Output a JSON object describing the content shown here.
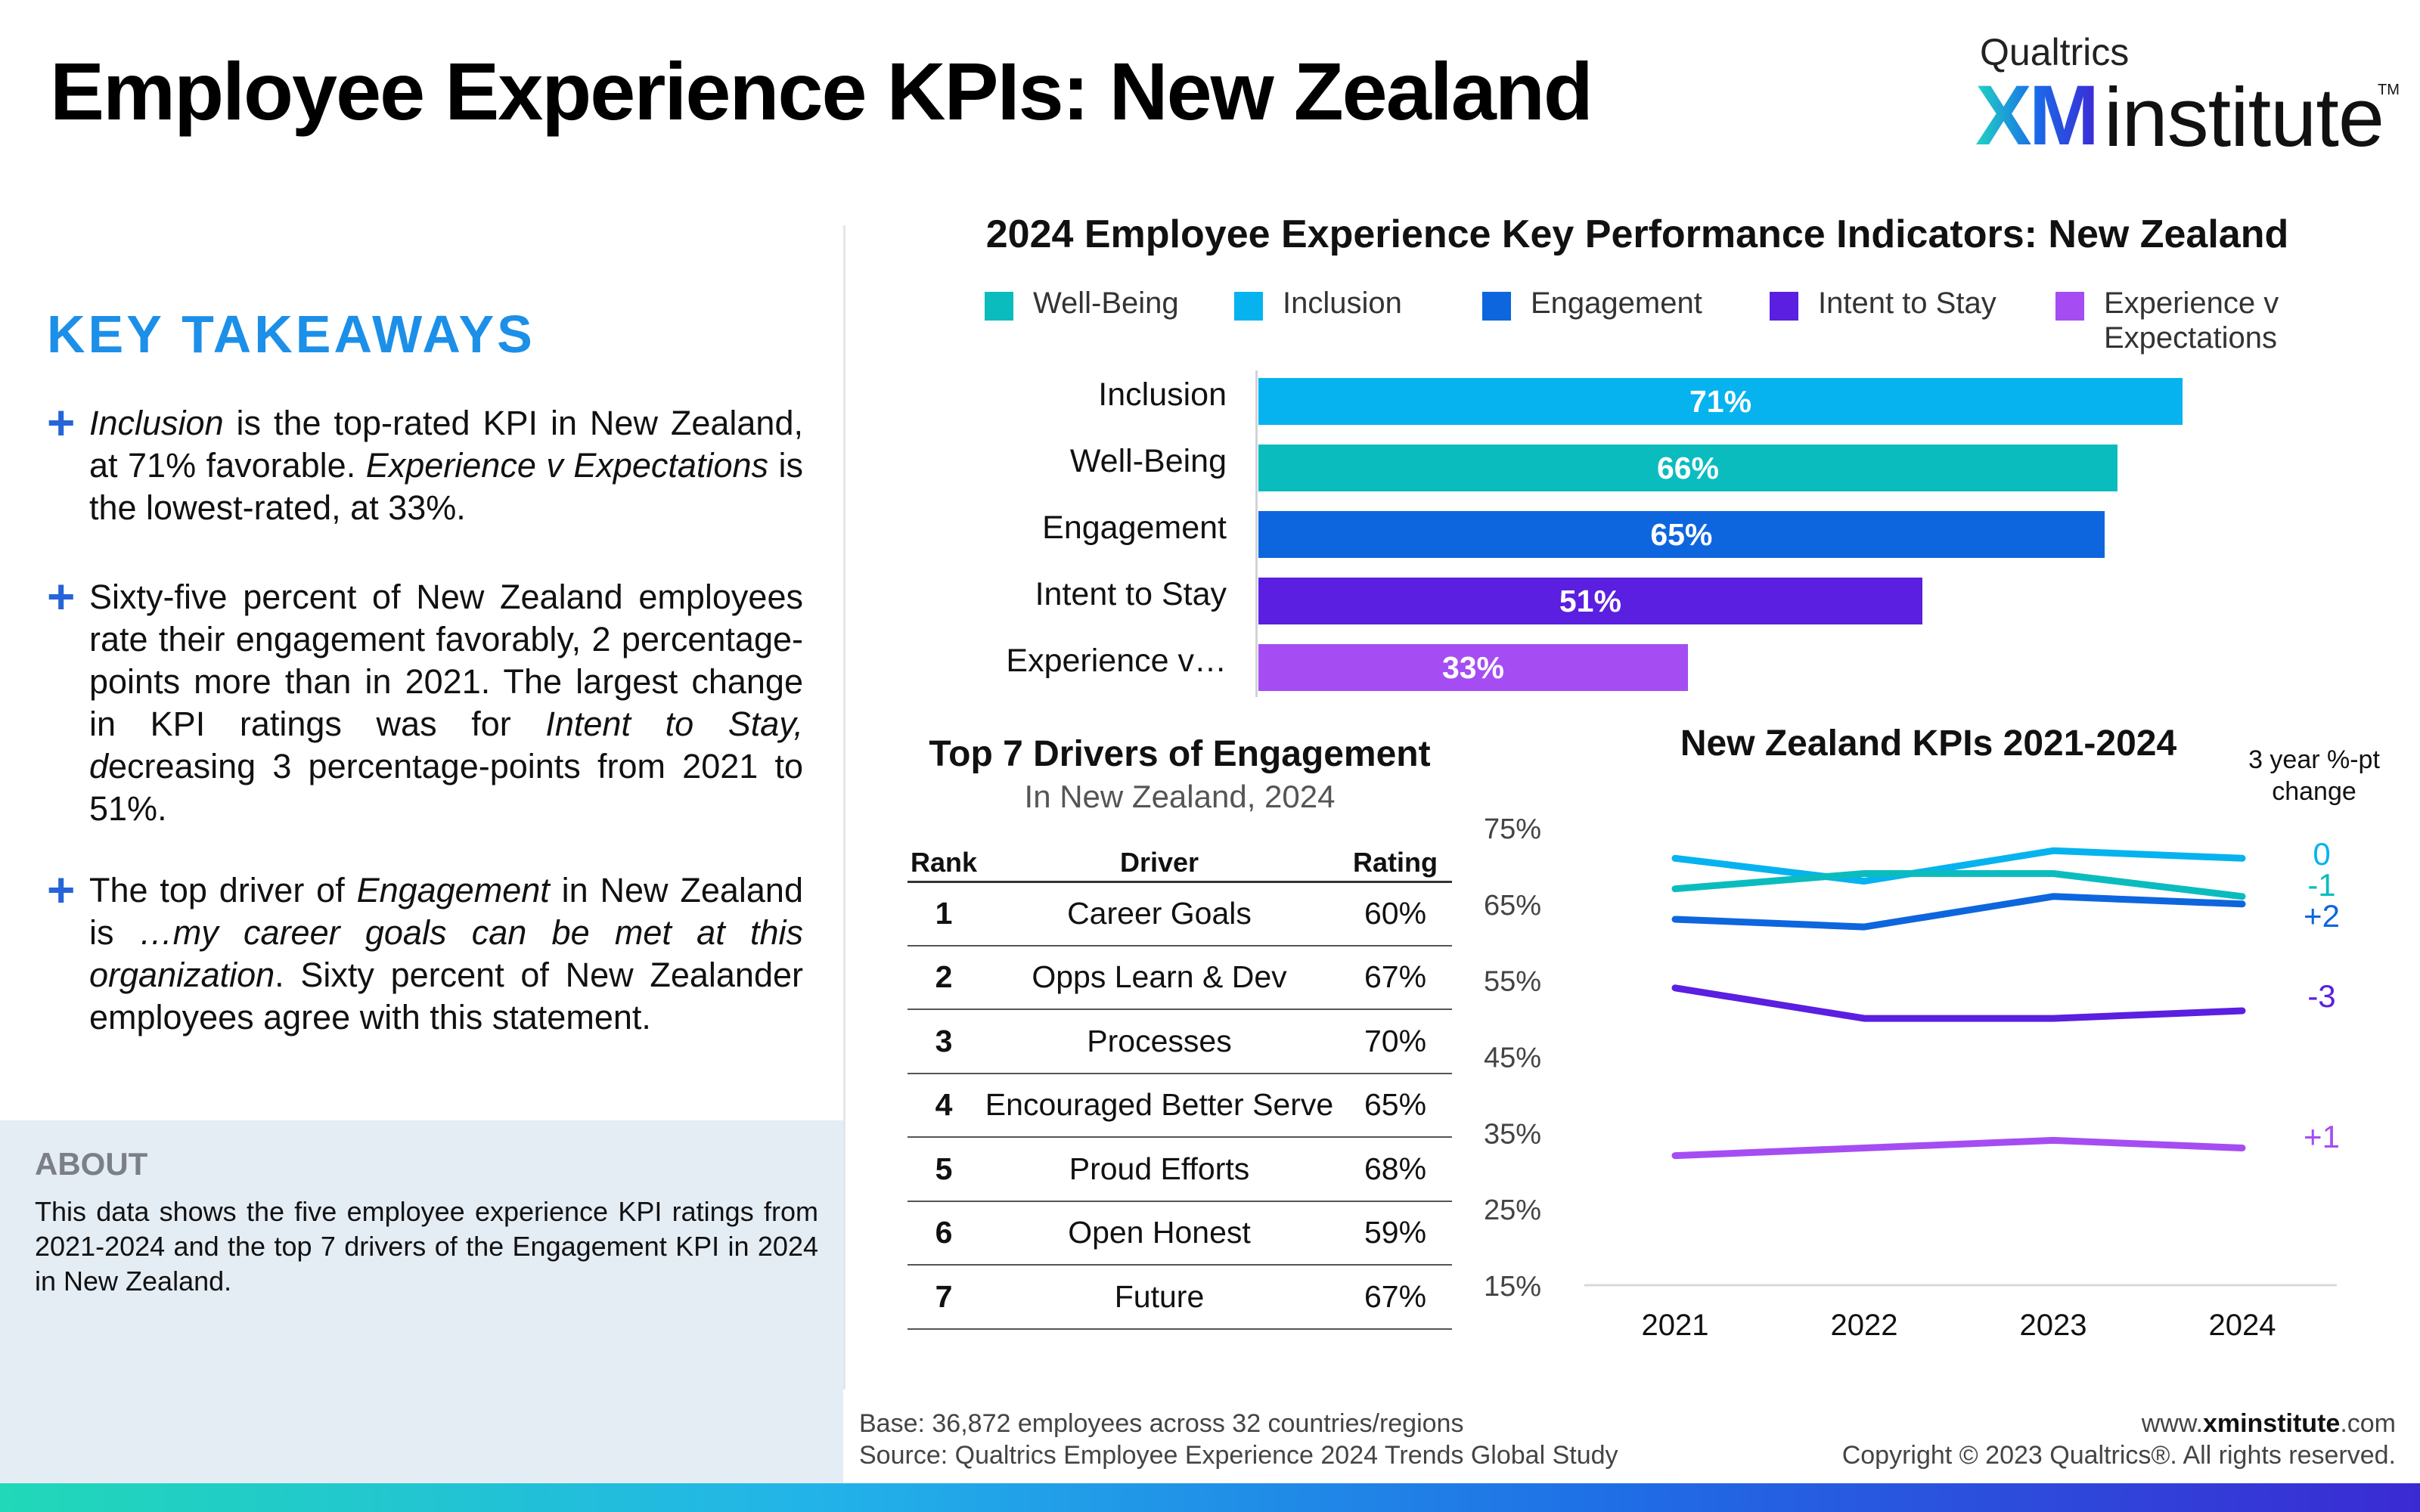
{
  "page": {
    "title": "Employee Experience KPIs: New Zealand"
  },
  "brand": {
    "company": "Qualtrics",
    "xm": "XM",
    "institute": "institute",
    "tm": "TM"
  },
  "key_takeaways": {
    "heading": "KEY TAKEAWAYS",
    "items": [
      {
        "parts": [
          {
            "text": "Inclusion",
            "italic": true
          },
          {
            "text": " is the top-rated KPI in New Zealand, at 71% favorable. "
          },
          {
            "text": "Experience v Expectations",
            "italic": true
          },
          {
            "text": " is the lowest-rated, at 33%."
          }
        ]
      },
      {
        "parts": [
          {
            "text": "Sixty-five percent of New Zealand employees rate their engagement favorably, 2 percentage-points more than in 2021. The largest change in KPI ratings was for "
          },
          {
            "text": "Intent to Stay, d",
            "italic": true
          },
          {
            "text": "ecreasing 3 percentage-points from 2021 to 51%."
          }
        ]
      },
      {
        "parts": [
          {
            "text": "The top driver of "
          },
          {
            "text": "Engagement",
            "italic": true
          },
          {
            "text": " in New Zealand is "
          },
          {
            "text": "…my career goals can be met at this organization",
            "italic": true
          },
          {
            "text": ". Sixty percent of New Zealander employees agree with this statement."
          }
        ]
      }
    ]
  },
  "about": {
    "heading": "ABOUT",
    "text": "This data shows the five employee experience KPI ratings from 2021-2024 and the top 7 drivers of the Engagement KPI in 2024 in New Zealand."
  },
  "colors": {
    "well_being": "#0bbcbf",
    "inclusion": "#06b3ef",
    "engagement": "#0e66de",
    "intent_to_stay": "#5a1fe0",
    "experience_v_expectations": "#a54df2"
  },
  "chart_data": [
    {
      "type": "bar",
      "title": "2024 Employee Experience Key Performance Indicators: New Zealand",
      "legend": [
        {
          "name": "Well-Being",
          "color": "#0bbcbf"
        },
        {
          "name": "Inclusion",
          "color": "#06b3ef"
        },
        {
          "name": "Engagement",
          "color": "#0e66de"
        },
        {
          "name": "Intent to Stay",
          "color": "#5a1fe0"
        },
        {
          "name": "Experience v Expectations",
          "color": "#a54df2"
        }
      ],
      "categories": [
        "Inclusion",
        "Well-Being",
        "Engagement",
        "Intent to Stay",
        "Experience v…"
      ],
      "values": [
        71,
        66,
        65,
        51,
        33
      ],
      "labels": [
        "71%",
        "66%",
        "65%",
        "51%",
        "33%"
      ],
      "colors": [
        "#06b3ef",
        "#0bbcbf",
        "#0e66de",
        "#5a1fe0",
        "#a54df2"
      ],
      "xlim": [
        0,
        71
      ]
    },
    {
      "type": "table",
      "title": "Top 7 Drivers of Engagement",
      "subtitle": "In New Zealand, 2024",
      "columns": [
        "Rank",
        "Driver",
        "Rating"
      ],
      "rows": [
        [
          "1",
          "Career Goals",
          "60%"
        ],
        [
          "2",
          "Opps Learn & Dev",
          "67%"
        ],
        [
          "3",
          "Processes",
          "70%"
        ],
        [
          "4",
          "Encouraged Better Serve",
          "65%"
        ],
        [
          "5",
          "Proud Efforts",
          "68%"
        ],
        [
          "6",
          "Open Honest",
          "59%"
        ],
        [
          "7",
          "Future",
          "67%"
        ]
      ]
    },
    {
      "type": "line",
      "title": "New Zealand KPIs 2021-2024",
      "change_label": "3 year %-pt change",
      "x": [
        "2021",
        "2022",
        "2023",
        "2024"
      ],
      "ylim": [
        15,
        75
      ],
      "yticks": [
        "75%",
        "65%",
        "55%",
        "45%",
        "35%",
        "25%",
        "15%"
      ],
      "ytick_values": [
        75,
        65,
        55,
        45,
        35,
        25,
        15
      ],
      "series": [
        {
          "key": "inclusion",
          "color": "#06b3ef",
          "values": [
            71,
            68,
            72,
            71
          ],
          "change": "0"
        },
        {
          "key": "well_being",
          "color": "#0bbcbf",
          "values": [
            67,
            69,
            69,
            66
          ],
          "change": "-1"
        },
        {
          "key": "engagement",
          "color": "#0e66de",
          "values": [
            63,
            62,
            66,
            65
          ],
          "change": "+2"
        },
        {
          "key": "intent_to_stay",
          "color": "#5a1fe0",
          "values": [
            54,
            50,
            50,
            51
          ],
          "change": "-3"
        },
        {
          "key": "experience_v_expectations",
          "color": "#a54df2",
          "values": [
            32,
            33,
            34,
            33
          ],
          "change": "+1"
        }
      ]
    }
  ],
  "footer": {
    "base": "Base: 36,872 employees across 32 countries/regions",
    "source": "Source: Qualtrics Employee Experience 2024 Trends Global Study",
    "url_prefix": "www.",
    "url_domain": "xminstitute",
    "url_suffix": ".com",
    "copyright": "Copyright © 2023 Qualtrics®. All rights reserved."
  }
}
